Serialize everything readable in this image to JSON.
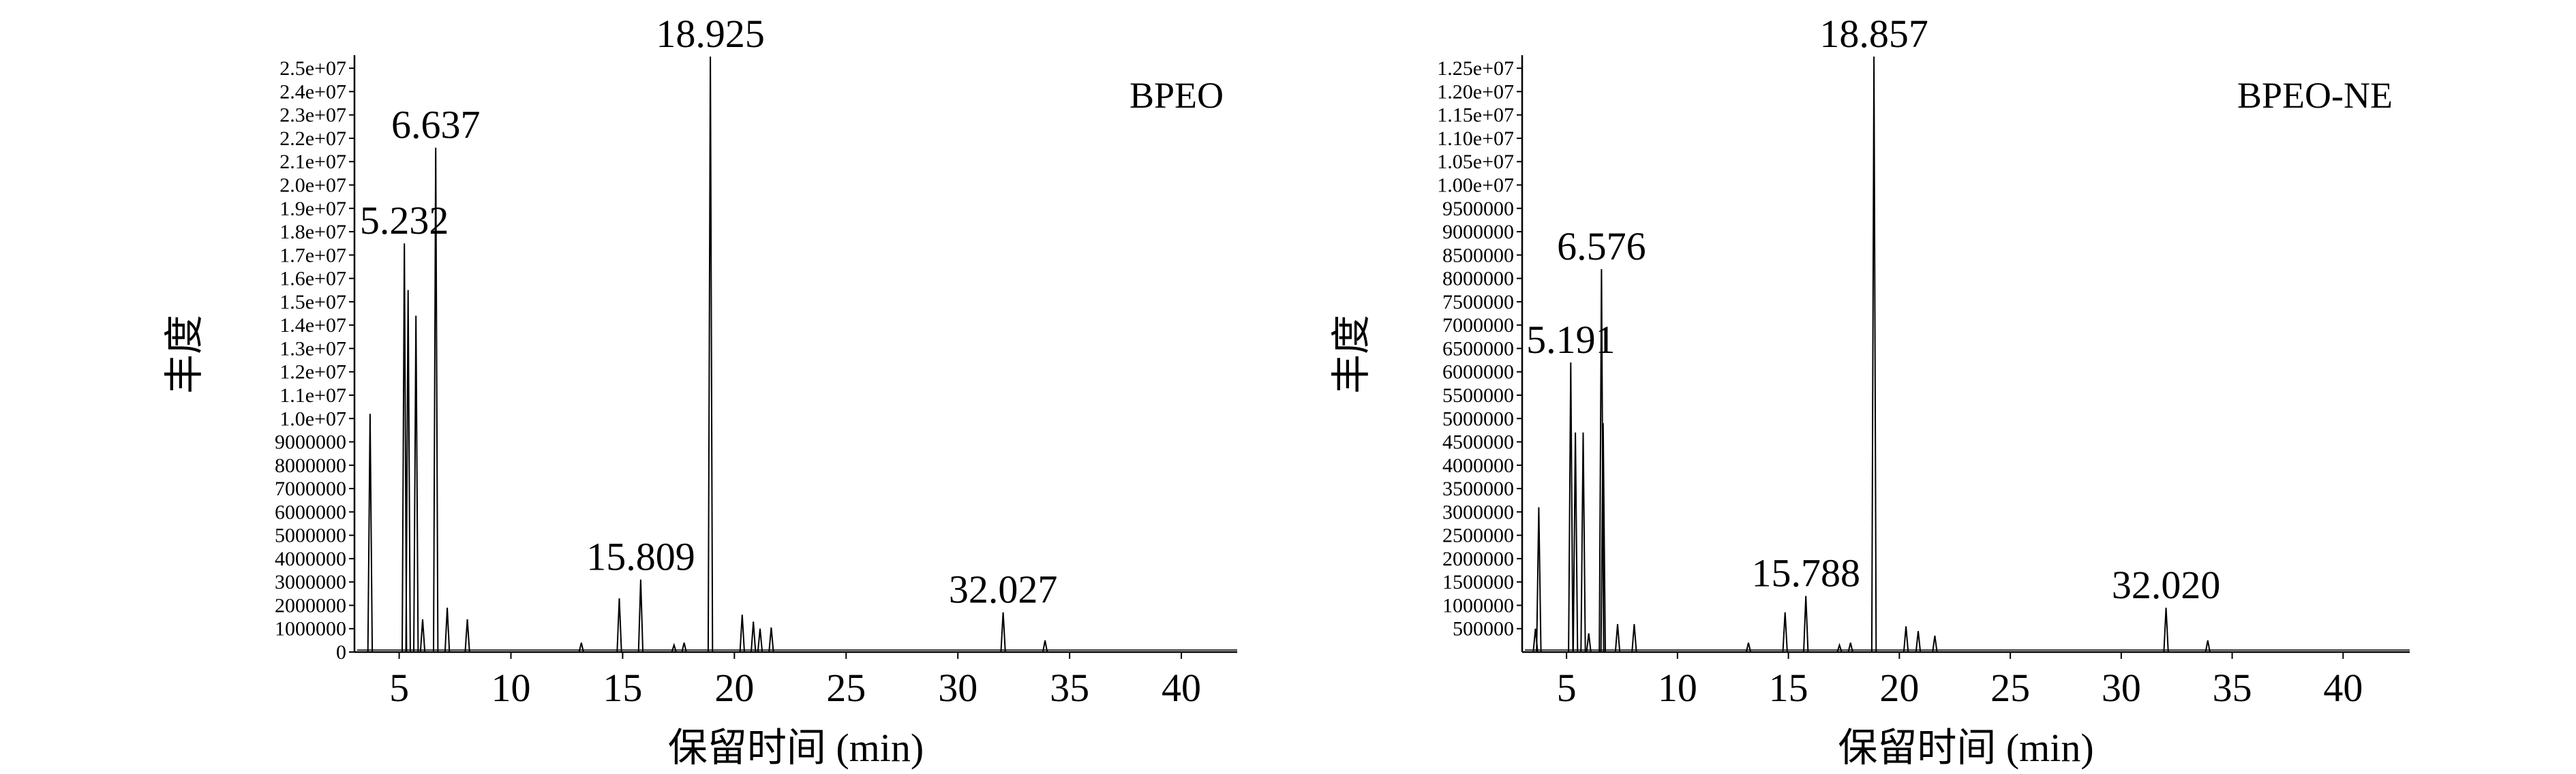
{
  "chart_data": [
    {
      "type": "line",
      "tag": "BPEO",
      "xlabel": "保留时间 (min)",
      "ylabel": "丰度",
      "xlim": [
        3,
        42.5
      ],
      "ylim": [
        0,
        25500000
      ],
      "xticks": [
        5,
        10,
        15,
        20,
        25,
        30,
        35,
        40
      ],
      "xtick_labels": [
        "5",
        "10",
        "15",
        "20",
        "25",
        "30",
        "35",
        "40"
      ],
      "yticks": [
        0,
        1000000,
        2000000,
        3000000,
        4000000,
        5000000,
        6000000,
        7000000,
        8000000,
        9000000,
        10000000,
        11000000,
        12000000,
        13000000,
        14000000,
        15000000,
        16000000,
        17000000,
        18000000,
        19000000,
        20000000,
        21000000,
        22000000,
        23000000,
        24000000,
        25000000
      ],
      "ytick_labels": [
        "0",
        "1000000",
        "2000000",
        "3000000",
        "4000000",
        "5000000",
        "6000000",
        "7000000",
        "8000000",
        "9000000",
        "1.0e+07",
        "1.1e+07",
        "1.2e+07",
        "1.3e+07",
        "1.4e+07",
        "1.5e+07",
        "1.6e+07",
        "1.7e+07",
        "1.8e+07",
        "1.9e+07",
        "2.0e+07",
        "2.1e+07",
        "2.2e+07",
        "2.3e+07",
        "2.4e+07",
        "2.5e+07"
      ],
      "grid": false,
      "peaks": [
        {
          "x": 3.7,
          "y": 10200000
        },
        {
          "x": 5.232,
          "y": 17500000
        },
        {
          "x": 5.4,
          "y": 15500000
        },
        {
          "x": 5.75,
          "y": 14400000
        },
        {
          "x": 6.05,
          "y": 1400000
        },
        {
          "x": 6.637,
          "y": 21600000
        },
        {
          "x": 7.15,
          "y": 1900000
        },
        {
          "x": 8.05,
          "y": 1400000
        },
        {
          "x": 13.15,
          "y": 400000
        },
        {
          "x": 14.85,
          "y": 2300000
        },
        {
          "x": 15.809,
          "y": 3100000
        },
        {
          "x": 17.3,
          "y": 300000
        },
        {
          "x": 17.75,
          "y": 400000
        },
        {
          "x": 18.925,
          "y": 25500000
        },
        {
          "x": 20.35,
          "y": 1600000
        },
        {
          "x": 20.85,
          "y": 1300000
        },
        {
          "x": 21.15,
          "y": 1000000
        },
        {
          "x": 21.65,
          "y": 1050000
        },
        {
          "x": 32.027,
          "y": 1700000
        },
        {
          "x": 33.9,
          "y": 500000
        }
      ],
      "peak_labels": [
        {
          "x": 5.232,
          "y": 17500000,
          "text": "5.232"
        },
        {
          "x": 6.637,
          "y": 21600000,
          "text": "6.637"
        },
        {
          "x": 15.809,
          "y": 3100000,
          "text": "15.809"
        },
        {
          "x": 18.925,
          "y": 25500000,
          "text": "18.925"
        },
        {
          "x": 32.027,
          "y": 1700000,
          "text": "32.027"
        }
      ]
    },
    {
      "type": "line",
      "tag": "BPEO-NE",
      "xlabel": "保留时间 (min)",
      "ylabel": "丰度",
      "xlim": [
        3,
        43
      ],
      "ylim": [
        0,
        12750000
      ],
      "xticks": [
        5,
        10,
        15,
        20,
        25,
        30,
        35,
        40
      ],
      "xtick_labels": [
        "5",
        "10",
        "15",
        "20",
        "25",
        "30",
        "35",
        "40"
      ],
      "yticks": [
        500000,
        1000000,
        1500000,
        2000000,
        2500000,
        3000000,
        3500000,
        4000000,
        4500000,
        5000000,
        5500000,
        6000000,
        6500000,
        7000000,
        7500000,
        8000000,
        8500000,
        9000000,
        9500000,
        10000000,
        10500000,
        11000000,
        11500000,
        12000000,
        12500000
      ],
      "ytick_labels": [
        "500000",
        "1000000",
        "1500000",
        "2000000",
        "2500000",
        "3000000",
        "3500000",
        "4000000",
        "4500000",
        "5000000",
        "5500000",
        "6000000",
        "6500000",
        "7000000",
        "7500000",
        "8000000",
        "8500000",
        "9000000",
        "9500000",
        "1.00e+07",
        "1.05e+07",
        "1.10e+07",
        "1.15e+07",
        "1.20e+07",
        "1.25e+07"
      ],
      "grid": false,
      "peaks": [
        {
          "x": 3.6,
          "y": 500000
        },
        {
          "x": 3.75,
          "y": 3100000
        },
        {
          "x": 5.191,
          "y": 6200000
        },
        {
          "x": 5.4,
          "y": 4700000
        },
        {
          "x": 5.75,
          "y": 4700000
        },
        {
          "x": 6.0,
          "y": 400000
        },
        {
          "x": 6.576,
          "y": 8200000
        },
        {
          "x": 6.65,
          "y": 4900000
        },
        {
          "x": 7.3,
          "y": 600000
        },
        {
          "x": 8.05,
          "y": 600000
        },
        {
          "x": 13.2,
          "y": 200000
        },
        {
          "x": 14.85,
          "y": 850000
        },
        {
          "x": 15.788,
          "y": 1200000
        },
        {
          "x": 17.3,
          "y": 150000
        },
        {
          "x": 17.8,
          "y": 200000
        },
        {
          "x": 18.857,
          "y": 12750000
        },
        {
          "x": 20.3,
          "y": 550000
        },
        {
          "x": 20.85,
          "y": 450000
        },
        {
          "x": 21.6,
          "y": 350000
        },
        {
          "x": 32.02,
          "y": 950000
        },
        {
          "x": 33.9,
          "y": 250000
        }
      ],
      "peak_labels": [
        {
          "x": 5.191,
          "y": 6200000,
          "text": "5.191"
        },
        {
          "x": 6.576,
          "y": 8200000,
          "text": "6.576"
        },
        {
          "x": 15.788,
          "y": 1200000,
          "text": "15.788"
        },
        {
          "x": 18.857,
          "y": 12750000,
          "text": "18.857"
        },
        {
          "x": 32.02,
          "y": 950000,
          "text": "32.020"
        }
      ]
    }
  ]
}
